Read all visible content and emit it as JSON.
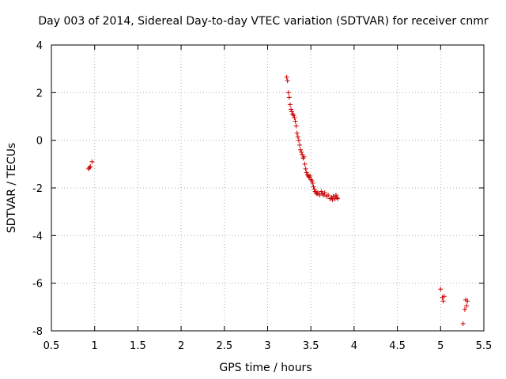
{
  "chart_data": {
    "type": "scatter",
    "title": "Day 003 of 2014, Sidereal Day-to-day VTEC variation (SDTVAR) for receiver cnmr",
    "xlabel": "GPS time / hours",
    "ylabel": "SDTVAR / TECUs",
    "xlim": [
      0.5,
      5.5
    ],
    "ylim": [
      -8,
      4
    ],
    "grid": true,
    "marker": "+",
    "series_color": "#cc0000",
    "x_ticks": [
      0.5,
      1,
      1.5,
      2,
      2.5,
      3,
      3.5,
      4,
      4.5,
      5,
      5.5
    ],
    "x_tick_labels": [
      "0.5",
      "1",
      "1.5",
      "2",
      "2.5",
      "3",
      "3.5",
      "4",
      "4.5",
      "5",
      "5.5"
    ],
    "y_ticks": [
      4,
      2,
      0,
      -2,
      -4,
      -6,
      -8
    ],
    "y_tick_labels": [
      "4",
      "2",
      "0",
      "-2",
      "-4",
      "-6",
      "-8"
    ],
    "series": [
      {
        "name": "SDTVAR",
        "points": [
          [
            0.93,
            -1.2
          ],
          [
            0.94,
            -1.15
          ],
          [
            0.95,
            -1.1
          ],
          [
            0.97,
            -0.9
          ],
          [
            3.22,
            2.65
          ],
          [
            3.23,
            2.5
          ],
          [
            3.24,
            2.0
          ],
          [
            3.25,
            1.8
          ],
          [
            3.26,
            1.5
          ],
          [
            3.27,
            1.3
          ],
          [
            3.28,
            1.2
          ],
          [
            3.29,
            1.1
          ],
          [
            3.3,
            1.05
          ],
          [
            3.31,
            0.95
          ],
          [
            3.32,
            0.8
          ],
          [
            3.33,
            0.6
          ],
          [
            3.34,
            0.3
          ],
          [
            3.35,
            0.15
          ],
          [
            3.36,
            0.0
          ],
          [
            3.37,
            -0.2
          ],
          [
            3.38,
            -0.4
          ],
          [
            3.39,
            -0.5
          ],
          [
            3.4,
            -0.6
          ],
          [
            3.41,
            -0.75
          ],
          [
            3.42,
            -0.7
          ],
          [
            3.43,
            -1.0
          ],
          [
            3.44,
            -1.2
          ],
          [
            3.45,
            -1.35
          ],
          [
            3.46,
            -1.45
          ],
          [
            3.47,
            -1.5
          ],
          [
            3.48,
            -1.55
          ],
          [
            3.49,
            -1.5
          ],
          [
            3.5,
            -1.65
          ],
          [
            3.51,
            -1.7
          ],
          [
            3.52,
            -1.8
          ],
          [
            3.53,
            -1.95
          ],
          [
            3.54,
            -2.05
          ],
          [
            3.55,
            -2.15
          ],
          [
            3.56,
            -2.2
          ],
          [
            3.57,
            -2.25
          ],
          [
            3.58,
            -2.2
          ],
          [
            3.6,
            -2.3
          ],
          [
            3.62,
            -2.15
          ],
          [
            3.63,
            -2.25
          ],
          [
            3.65,
            -2.3
          ],
          [
            3.66,
            -2.2
          ],
          [
            3.68,
            -2.35
          ],
          [
            3.7,
            -2.3
          ],
          [
            3.72,
            -2.45
          ],
          [
            3.74,
            -2.4
          ],
          [
            3.75,
            -2.5
          ],
          [
            3.76,
            -2.35
          ],
          [
            3.78,
            -2.45
          ],
          [
            3.79,
            -2.3
          ],
          [
            3.8,
            -2.4
          ],
          [
            3.81,
            -2.45
          ],
          [
            5.0,
            -6.25
          ],
          [
            5.02,
            -6.6
          ],
          [
            5.03,
            -6.75
          ],
          [
            5.04,
            -6.55
          ],
          [
            5.26,
            -7.7
          ],
          [
            5.28,
            -7.1
          ],
          [
            5.29,
            -6.7
          ],
          [
            5.3,
            -6.95
          ],
          [
            5.31,
            -6.75
          ]
        ]
      }
    ]
  }
}
